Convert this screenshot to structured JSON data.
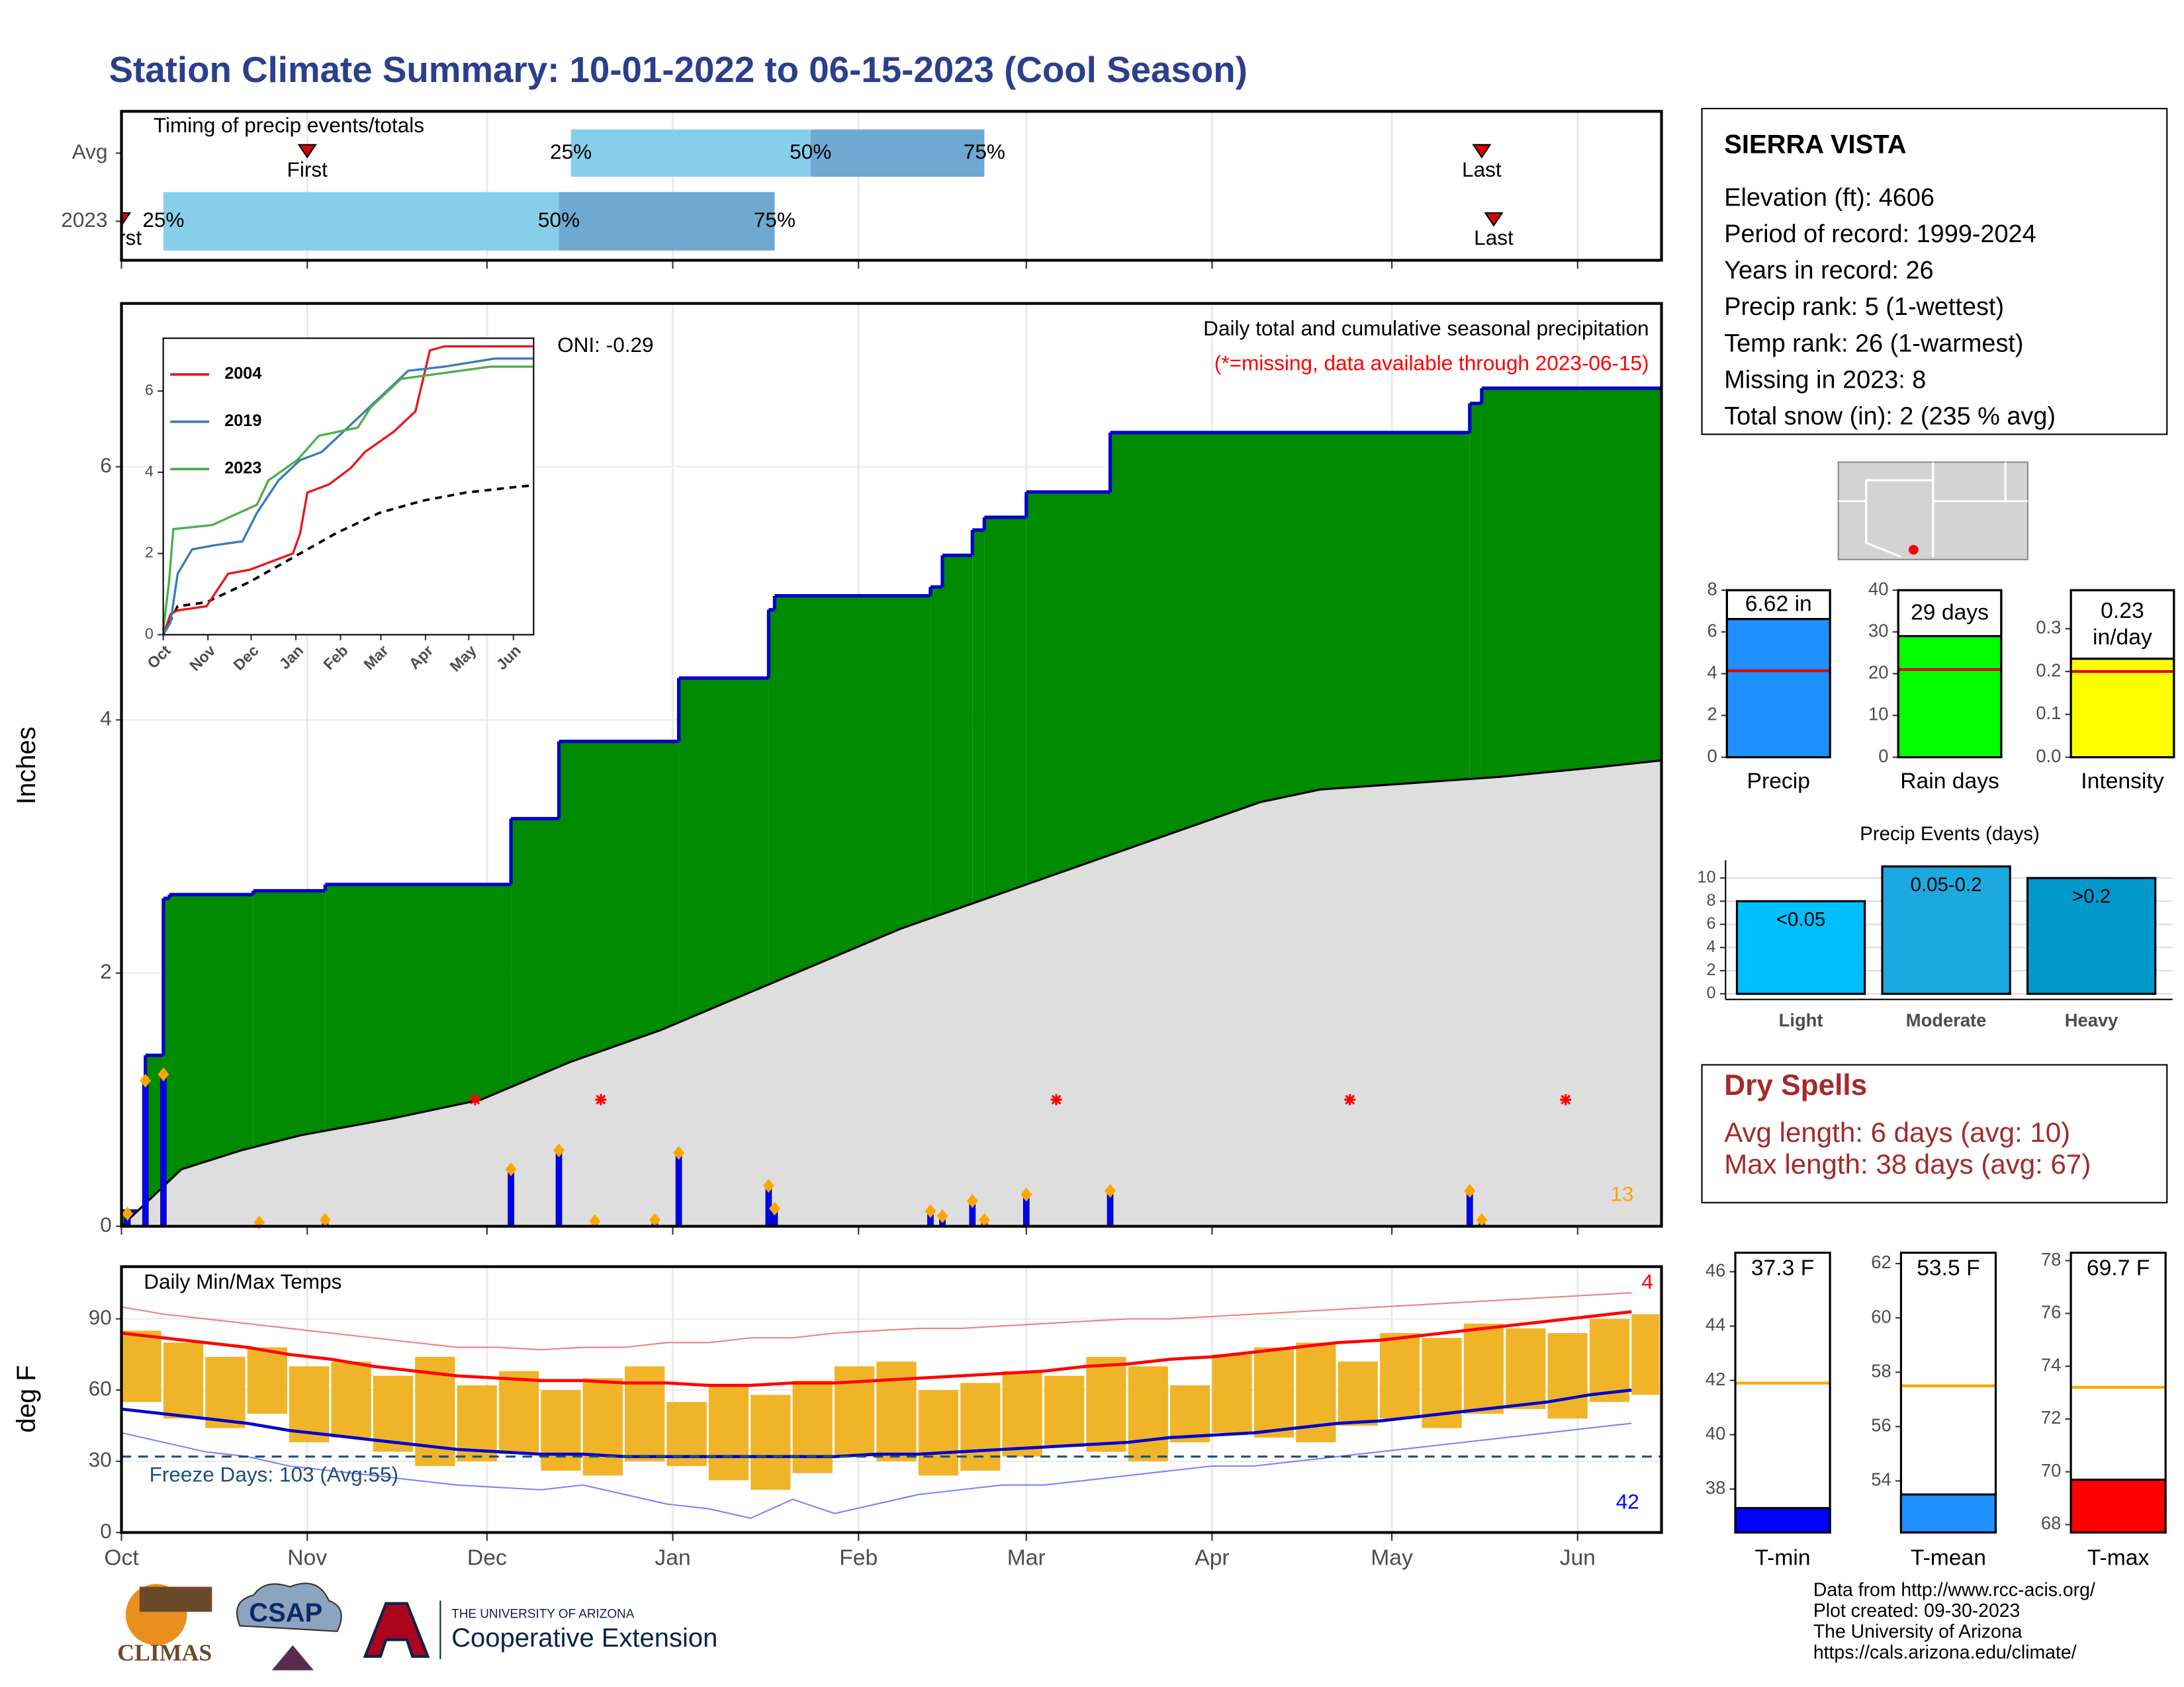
{
  "title": "Station Climate Summary: 10-01-2022 to 06-15-2023 (Cool Season)",
  "chart_data": [
    {
      "type": "timing",
      "title": "Timing of precip events/totals",
      "xlim": [
        0,
        257
      ],
      "colors": [
        "#87ceeb",
        "#6fa8d0"
      ],
      "rows": [
        {
          "name": "Avg",
          "first": 31,
          "first_label": "First",
          "p25": 75,
          "p25_label": "25%",
          "p50": 115,
          "p50_label": "50%",
          "p75": 144,
          "p75_label": "75%",
          "last": 227,
          "last_label": "Last"
        },
        {
          "name": "2023",
          "first": 0,
          "first_label": "First",
          "p25": 7,
          "p25_label": "25%",
          "p50": 73,
          "p50_label": "50%",
          "p75": 109,
          "p75_label": "75%",
          "last": 229,
          "last_label": "Last"
        }
      ]
    },
    {
      "type": "precip",
      "ylabel": "Inches",
      "title": "Daily total and cumulative seasonal precipitation",
      "note": "(*=missing, data available through 2023-06-15)",
      "oni": "ONI: -0.29",
      "count": 13,
      "xlim": [
        0,
        257
      ],
      "ylim": [
        0,
        7.29
      ],
      "yticks": [
        0,
        2,
        4,
        6
      ],
      "grid": true,
      "cumulative": {
        "color": "#008b00",
        "line_color": "#0000cd",
        "x": [
          0,
          4,
          7,
          8,
          22,
          34,
          65,
          73,
          93,
          108,
          109,
          135,
          137,
          142,
          144,
          151,
          165,
          225,
          227
        ],
        "values": [
          0.12,
          1.35,
          2.59,
          2.62,
          2.65,
          2.7,
          3.22,
          3.83,
          4.33,
          4.87,
          4.98,
          5.05,
          5.3,
          5.5,
          5.6,
          5.8,
          6.27,
          6.5,
          6.62
        ]
      },
      "average": {
        "color": "#dedede",
        "x": [
          0,
          10,
          20,
          30,
          45,
          60,
          75,
          90,
          100,
          115,
          130,
          145,
          160,
          175,
          190,
          200,
          215,
          230,
          245,
          257
        ],
        "values": [
          0,
          0.45,
          0.6,
          0.72,
          0.85,
          1.0,
          1.3,
          1.55,
          1.75,
          2.05,
          2.35,
          2.6,
          2.85,
          3.1,
          3.35,
          3.45,
          3.5,
          3.55,
          3.62,
          3.68
        ]
      },
      "daily": {
        "color": "#0000ff",
        "marker_color": "#ffa500",
        "x": [
          1,
          4,
          7,
          23,
          34,
          65,
          73,
          79,
          89,
          93,
          108,
          109,
          135,
          137,
          142,
          144,
          151,
          165,
          225,
          227
        ],
        "values": [
          0.1,
          1.15,
          1.2,
          0.03,
          0.05,
          0.45,
          0.6,
          0.04,
          0.05,
          0.58,
          0.32,
          0.14,
          0.12,
          0.08,
          0.2,
          0.05,
          0.25,
          0.28,
          0.28,
          0.05
        ]
      },
      "missing": {
        "color": "#ff0000",
        "x": [
          59,
          80,
          156,
          205,
          241
        ],
        "values": [
          1,
          1,
          1,
          1,
          1
        ]
      }
    },
    {
      "type": "inset",
      "xlim": [
        0,
        257
      ],
      "ylim": [
        0,
        7.3
      ],
      "yticks": [
        0,
        2,
        4,
        6
      ],
      "xticks": [
        {
          "value": 0,
          "label": "Oct"
        },
        {
          "value": 31,
          "label": "Nov"
        },
        {
          "value": 61,
          "label": "Dec"
        },
        {
          "value": 92,
          "label": "Jan"
        },
        {
          "value": 123,
          "label": "Feb"
        },
        {
          "value": 151,
          "label": "Mar"
        },
        {
          "value": 182,
          "label": "Apr"
        },
        {
          "value": 212,
          "label": "May"
        },
        {
          "value": 243,
          "label": "Jun"
        }
      ],
      "series": [
        {
          "name": "2004",
          "color": "#e41a1c",
          "x": [
            0,
            5,
            10,
            30,
            45,
            60,
            90,
            95,
            100,
            115,
            130,
            140,
            160,
            175,
            185,
            195,
            257
          ],
          "values": [
            0,
            0.5,
            0.6,
            0.7,
            1.5,
            1.6,
            2.0,
            2.5,
            3.5,
            3.7,
            4.1,
            4.5,
            5.0,
            5.5,
            7.0,
            7.1,
            7.1
          ]
        },
        {
          "name": "2019",
          "color": "#377eb8",
          "x": [
            0,
            5,
            10,
            20,
            35,
            55,
            65,
            80,
            95,
            110,
            125,
            140,
            155,
            170,
            195,
            230,
            257
          ],
          "values": [
            0,
            0.3,
            1.5,
            2.1,
            2.2,
            2.3,
            3.0,
            3.8,
            4.3,
            4.5,
            5.0,
            5.5,
            6.0,
            6.5,
            6.6,
            6.8,
            6.8
          ]
        },
        {
          "name": "2023",
          "color": "#4daf4a",
          "x": [
            0,
            4,
            7,
            34,
            65,
            73,
            93,
            108,
            135,
            144,
            165,
            227,
            257
          ],
          "values": [
            0.1,
            1.3,
            2.6,
            2.7,
            3.2,
            3.8,
            4.3,
            4.9,
            5.1,
            5.6,
            6.3,
            6.6,
            6.6
          ]
        }
      ],
      "average": {
        "color": "#000000",
        "x": [
          0,
          10,
          30,
          60,
          90,
          120,
          150,
          180,
          210,
          240,
          257
        ],
        "values": [
          0,
          0.7,
          0.8,
          1.3,
          1.9,
          2.5,
          3.0,
          3.3,
          3.5,
          3.62,
          3.68
        ]
      }
    },
    {
      "type": "temps",
      "title": "Daily Min/Max Temps",
      "ylabel": "deg F",
      "xlim": [
        0,
        257
      ],
      "ylim": [
        0,
        112
      ],
      "yticks": [
        0,
        30,
        60,
        90
      ],
      "xticks": [
        {
          "value": 0,
          "label": "Oct"
        },
        {
          "value": 31,
          "label": "Nov"
        },
        {
          "value": 61,
          "label": "Dec"
        },
        {
          "value": 92,
          "label": "Jan"
        },
        {
          "value": 123,
          "label": "Feb"
        },
        {
          "value": 151,
          "label": "Mar"
        },
        {
          "value": 182,
          "label": "Apr"
        },
        {
          "value": 212,
          "label": "May"
        },
        {
          "value": 243,
          "label": "Jun"
        }
      ],
      "freeze": 32,
      "freeze_label": "Freeze Days: 103 (Avg:55)",
      "freeze_color": "#1f4e79",
      "hot_count": 4,
      "cold_count": 42,
      "bar_color": "#f0b429",
      "x": [
        0,
        7,
        14,
        21,
        28,
        35,
        42,
        49,
        56,
        63,
        70,
        77,
        84,
        91,
        98,
        105,
        112,
        119,
        126,
        133,
        140,
        147,
        154,
        161,
        168,
        175,
        182,
        189,
        196,
        203,
        210,
        217,
        224,
        231,
        238,
        245,
        252
      ],
      "tmax": {
        "values": [
          85,
          80,
          74,
          78,
          70,
          72,
          66,
          74,
          62,
          68,
          60,
          65,
          70,
          55,
          62,
          58,
          64,
          70,
          72,
          60,
          63,
          68,
          66,
          74,
          70,
          62,
          75,
          78,
          80,
          72,
          84,
          82,
          88,
          86,
          84,
          90,
          92
        ]
      },
      "tmin": {
        "values": [
          55,
          48,
          44,
          50,
          38,
          40,
          34,
          28,
          30,
          33,
          26,
          24,
          30,
          28,
          22,
          18,
          25,
          32,
          30,
          24,
          26,
          32,
          36,
          34,
          30,
          38,
          42,
          40,
          38,
          45,
          48,
          44,
          50,
          52,
          48,
          55,
          58
        ]
      },
      "normal_max": {
        "color": "#ff0000",
        "values": [
          84,
          82,
          80,
          78,
          75,
          73,
          70,
          68,
          66,
          65,
          64,
          64,
          63,
          63,
          62,
          62,
          63,
          63,
          64,
          65,
          66,
          67,
          68,
          70,
          71,
          73,
          74,
          76,
          78,
          80,
          81,
          83,
          85,
          87,
          89,
          91,
          93
        ]
      },
      "normal_min": {
        "color": "#0000cd",
        "values": [
          52,
          50,
          48,
          46,
          43,
          41,
          39,
          37,
          35,
          34,
          33,
          33,
          32,
          32,
          32,
          32,
          32,
          32,
          33,
          33,
          34,
          35,
          36,
          37,
          38,
          40,
          41,
          42,
          44,
          46,
          47,
          49,
          51,
          53,
          55,
          58,
          60
        ]
      },
      "record_max": {
        "color": "#f08080",
        "values": [
          95,
          92,
          90,
          88,
          86,
          84,
          82,
          80,
          78,
          78,
          77,
          78,
          78,
          80,
          80,
          82,
          82,
          84,
          85,
          86,
          86,
          87,
          88,
          89,
          90,
          90,
          91,
          92,
          93,
          94,
          95,
          96,
          97,
          98,
          99,
          100,
          101
        ]
      },
      "record_min": {
        "color": "#8080ff",
        "values": [
          42,
          38,
          34,
          32,
          28,
          26,
          24,
          22,
          20,
          19,
          18,
          20,
          16,
          12,
          10,
          6,
          14,
          8,
          12,
          16,
          18,
          20,
          20,
          22,
          24,
          26,
          28,
          28,
          30,
          32,
          34,
          36,
          38,
          40,
          42,
          44,
          46
        ]
      }
    },
    {
      "type": "summary_bar",
      "category": "Precip",
      "value": 6.62,
      "value_label": "6.62 in",
      "average": 4.14,
      "color": "#1e90ff",
      "ylim": [
        0,
        8
      ],
      "yticks": [
        0,
        2,
        4,
        6,
        8
      ]
    },
    {
      "type": "summary_bar",
      "category": "Rain days",
      "value": 29,
      "value_label": "29 days",
      "average": 21,
      "color": "#00ff00",
      "ylim": [
        0,
        40
      ],
      "yticks": [
        0,
        10,
        20,
        30,
        40
      ]
    },
    {
      "type": "summary_bar",
      "category": "Intensity",
      "value": 0.23,
      "value_label": "0.23 in/day",
      "average": 0.2,
      "color": "#ffff00",
      "ylim": [
        0,
        0.39
      ],
      "yticks": [
        {
          "value": 0,
          "label": "0.0"
        },
        0.1,
        0.2,
        0.3
      ]
    },
    {
      "type": "events",
      "title": "Precip Events (days)",
      "categories": [
        "Light",
        "Moderate",
        "Heavy"
      ],
      "values": [
        8,
        11,
        10
      ],
      "value_labels": [
        "<0.05",
        "0.05-0.2",
        ">0.2"
      ],
      "colors": [
        "#00bfff",
        "#1ca9e0",
        "#0099cc"
      ],
      "ylim": [
        0,
        11.3
      ],
      "yticks": [
        0,
        2,
        4,
        6,
        8,
        10
      ]
    },
    {
      "type": "temp_box",
      "category": "T-min",
      "value": 37.3,
      "value_label": "37.3 F",
      "average": 41.9,
      "color": "#0000ff",
      "avg_color": "#ffa500",
      "ylim": [
        36.4,
        46.7
      ],
      "yticks": [
        38,
        40,
        42,
        44,
        46
      ]
    },
    {
      "type": "temp_box",
      "category": "T-mean",
      "value": 53.5,
      "value_label": "53.5 F",
      "average": 57.5,
      "color": "#1e90ff",
      "avg_color": "#ffa500",
      "ylim": [
        52.1,
        62.4
      ],
      "yticks": [
        54,
        56,
        58,
        60,
        62
      ]
    },
    {
      "type": "temp_box",
      "category": "T-max",
      "value": 69.7,
      "value_label": "69.7 F",
      "average": 73.2,
      "color": "#ff0000",
      "avg_color": "#ffa500",
      "ylim": [
        67.7,
        78.3
      ],
      "yticks": [
        68,
        70,
        72,
        74,
        76,
        78
      ]
    }
  ],
  "station": {
    "name": "SIERRA VISTA",
    "lines": [
      "Elevation (ft): 4606",
      "Period of record: 1999-2024",
      "Years in record: 26",
      "Precip rank: 5 (1-wettest)",
      "Temp rank: 26 (1-warmest)",
      "Missing in 2023: 8",
      "Total snow (in): 2 (235 % avg)"
    ]
  },
  "dry_spells": {
    "title": "Dry Spells",
    "lines": [
      "Avg length: 6 days (avg: 10)",
      "Max length: 38 days (avg: 67)"
    ]
  },
  "footer": [
    "Data from http://www.rcc-acis.org/",
    "Plot created: 09-30-2023",
    "The University of Arizona",
    "https://cals.arizona.edu/climate/"
  ],
  "logos": {
    "climas": "CLIMAS",
    "csap": "CSAP",
    "ua": "THE UNIVERSITY OF ARIZONA",
    "coop": "Cooperative Extension"
  }
}
